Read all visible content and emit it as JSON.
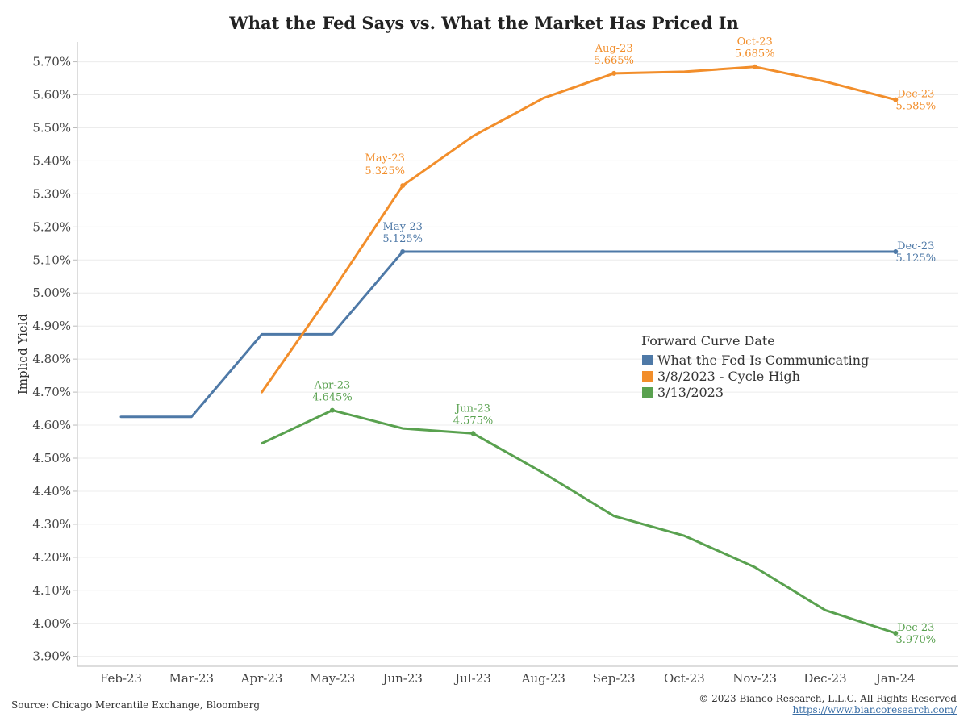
{
  "chart_data": {
    "type": "line",
    "title": "What the Fed Says vs. What the Market Has Priced In",
    "ylabel": "Implied Yield",
    "ylim": [
      3.87,
      5.76
    ],
    "y_ticks": [
      "3.90%",
      "4.00%",
      "4.10%",
      "4.20%",
      "4.30%",
      "4.40%",
      "4.50%",
      "4.60%",
      "4.70%",
      "4.80%",
      "4.90%",
      "5.00%",
      "5.10%",
      "5.20%",
      "5.30%",
      "5.40%",
      "5.50%",
      "5.60%",
      "5.70%"
    ],
    "y_tick_values": [
      3.9,
      4.0,
      4.1,
      4.2,
      4.3,
      4.4,
      4.5,
      4.6,
      4.7,
      4.8,
      4.9,
      5.0,
      5.1,
      5.2,
      5.3,
      5.4,
      5.5,
      5.6,
      5.7
    ],
    "categories": [
      "Feb-23",
      "Mar-23",
      "Apr-23",
      "May-23",
      "Jun-23",
      "Jul-23",
      "Aug-23",
      "Sep-23",
      "Oct-23",
      "Nov-23",
      "Dec-23",
      "Jan-24"
    ],
    "grid": true,
    "legend": {
      "title": "Forward Curve Date",
      "placement": "center-right"
    },
    "series": [
      {
        "name": "What the Fed Is Communicating",
        "color": "#4e79a7",
        "values": [
          4.625,
          4.625,
          4.875,
          4.875,
          5.125,
          5.125,
          5.125,
          5.125,
          5.125,
          5.125,
          5.125,
          5.125
        ],
        "annotations": [
          {
            "index": 4,
            "lines": [
              "May-23",
              "5.125%"
            ],
            "pos": "above"
          },
          {
            "index": 11,
            "lines": [
              "Dec-23",
              "5.125%"
            ],
            "pos": "right"
          }
        ]
      },
      {
        "name": "3/8/2023 - Cycle High",
        "color": "#f28e2b",
        "values": [
          null,
          null,
          4.7,
          5.005,
          5.325,
          5.475,
          5.59,
          5.665,
          5.67,
          5.685,
          5.64,
          5.585
        ],
        "annotations": [
          {
            "index": 4,
            "lines": [
              "May-23",
              "5.325%"
            ],
            "pos": "above-left"
          },
          {
            "index": 7,
            "lines": [
              "Aug-23",
              "5.665%"
            ],
            "pos": "above"
          },
          {
            "index": 9,
            "lines": [
              "Oct-23",
              "5.685%"
            ],
            "pos": "above"
          },
          {
            "index": 11,
            "lines": [
              "Dec-23",
              "5.585%"
            ],
            "pos": "right"
          }
        ]
      },
      {
        "name": "3/13/2023",
        "color": "#59a14f",
        "values": [
          null,
          null,
          4.545,
          4.645,
          4.59,
          4.575,
          4.455,
          4.325,
          4.265,
          4.17,
          4.04,
          3.97
        ],
        "annotations": [
          {
            "index": 3,
            "lines": [
              "Apr-23",
              "4.645%"
            ],
            "pos": "above"
          },
          {
            "index": 5,
            "lines": [
              "Jun-23",
              "4.575%"
            ],
            "pos": "above"
          },
          {
            "index": 11,
            "lines": [
              "Dec-23",
              "3.970%"
            ],
            "pos": "right"
          }
        ]
      }
    ]
  },
  "footer": {
    "source": "Source: Chicago Mercantile Exchange, Bloomberg",
    "copyright": "© 2023 Bianco Research, L.L.C. All Rights Reserved",
    "url": "https://www.biancoresearch.com/"
  }
}
